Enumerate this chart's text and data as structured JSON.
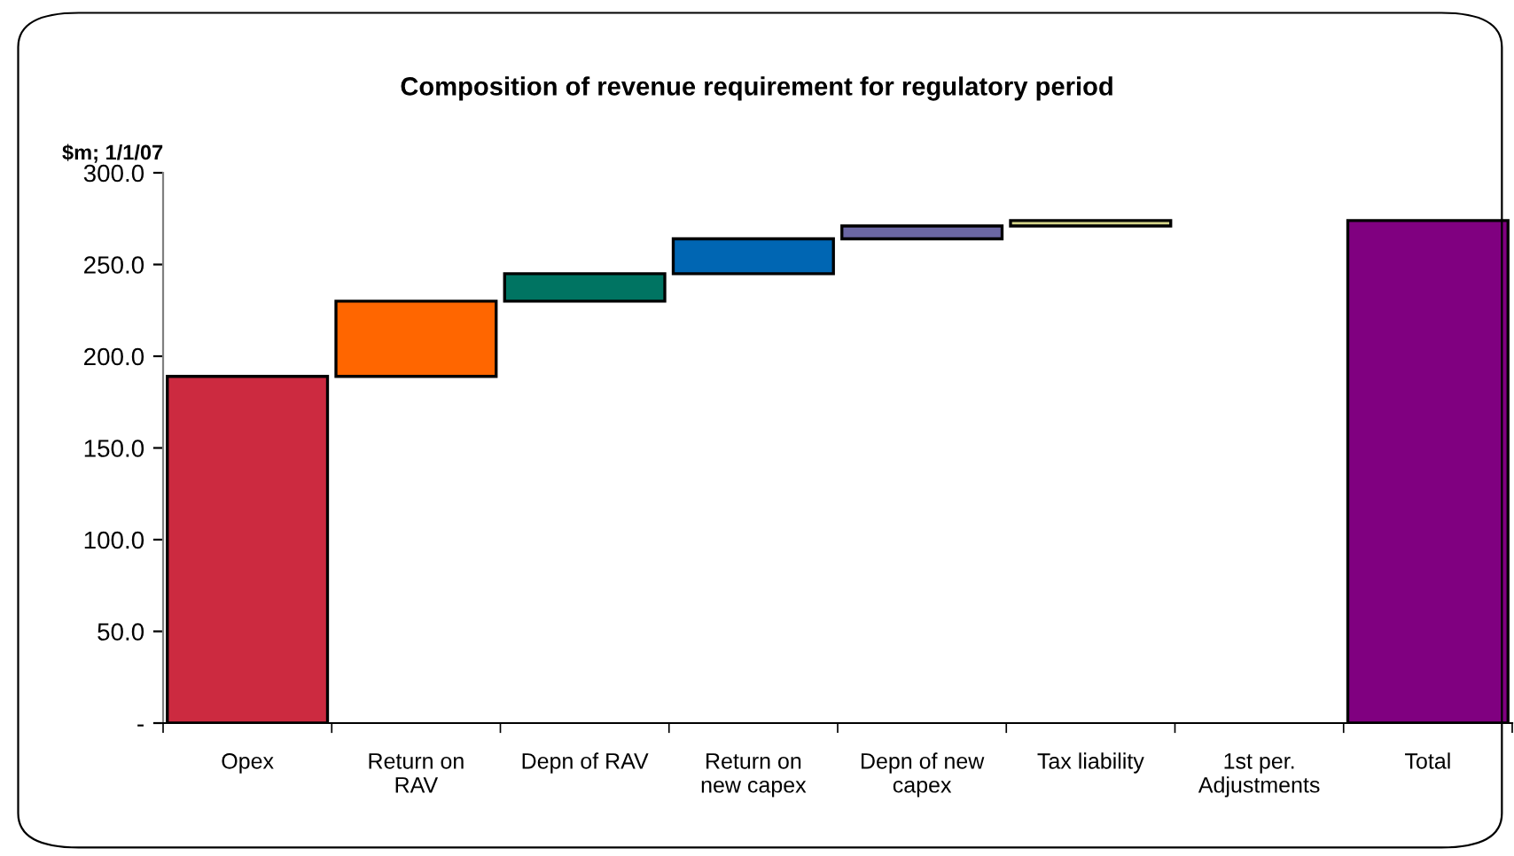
{
  "chart_data": {
    "type": "bar",
    "title": "Composition of revenue requirement for regulatory period",
    "ylabel": "$m; 1/1/07",
    "categories": [
      "Opex",
      "Return on\nRAV",
      "Depn of RAV",
      "Return on\nnew capex",
      "Depn of new\ncapex",
      "Tax liability",
      "1st per.\nAdjustments",
      "Total"
    ],
    "values": [
      189,
      41,
      15,
      19,
      7,
      3,
      null,
      274
    ],
    "base": [
      0,
      189,
      230,
      245,
      264,
      271,
      null,
      0
    ],
    "colors": [
      "#cc2a40",
      "#ff6600",
      "#007462",
      "#0066b3",
      "#6b67a3",
      "#d6d68a",
      null,
      "#800080"
    ],
    "ylim": [
      0,
      300
    ],
    "yticks": [
      {
        "value": 0,
        "label": "-"
      },
      {
        "value": 50,
        "label": "50.0"
      },
      {
        "value": 100,
        "label": "100.0"
      },
      {
        "value": 150,
        "label": "150.0"
      },
      {
        "value": 200,
        "label": "200.0"
      },
      {
        "value": 250,
        "label": "250.0"
      },
      {
        "value": 300,
        "label": "300.0"
      }
    ],
    "grid": false,
    "legend": false
  }
}
